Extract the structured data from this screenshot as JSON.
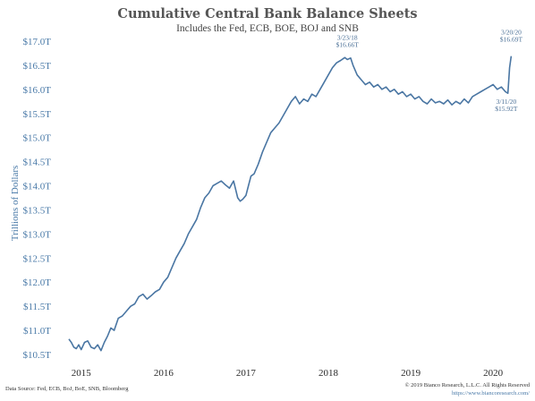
{
  "chart_data": {
    "type": "line",
    "title": "Cumulative Central Bank Balance Sheets",
    "subtitle": "Includes the Fed, ECB, BOE, BOJ and SNB",
    "ylabel": "Trillions of Dollars",
    "xlabel": "",
    "ylim": [
      10.5,
      17.0
    ],
    "xlim": [
      2014.72,
      2020.4
    ],
    "y_ticks": [
      10.5,
      11.0,
      11.5,
      12.0,
      12.5,
      13.0,
      13.5,
      14.0,
      14.5,
      15.0,
      15.5,
      16.0,
      16.5,
      17.0
    ],
    "y_tick_labels": [
      "$10.5T",
      "$11.0T",
      "$11.5T",
      "$12.0T",
      "$12.5T",
      "$13.0T",
      "$13.5T",
      "$14.0T",
      "$14.5T",
      "$15.0T",
      "$15.5T",
      "$16.0T",
      "$16.5T",
      "$17.0T"
    ],
    "x_ticks": [
      2015,
      2016,
      2017,
      2018,
      2019,
      2020
    ],
    "x_tick_labels": [
      "2015",
      "2016",
      "2017",
      "2018",
      "2019",
      "2020"
    ],
    "grid": false,
    "legend": "none",
    "line_color": "#4a76a3",
    "series": [
      {
        "x": [
          2014.85,
          2014.88,
          2014.91,
          2014.94,
          2014.97,
          2015.0,
          2015.04,
          2015.08,
          2015.12,
          2015.16,
          2015.2,
          2015.24,
          2015.28,
          2015.32,
          2015.36,
          2015.4,
          2015.45,
          2015.5,
          2015.55,
          2015.6,
          2015.65,
          2015.7,
          2015.75,
          2015.8,
          2015.85,
          2015.9,
          2015.95,
          2016.0,
          2016.05,
          2016.1,
          2016.15,
          2016.2,
          2016.25,
          2016.3,
          2016.35,
          2016.4,
          2016.45,
          2016.5,
          2016.55,
          2016.6,
          2016.65,
          2016.7,
          2016.75,
          2016.8,
          2016.85,
          2016.9,
          2016.93,
          2016.96,
          2017.0,
          2017.03,
          2017.06,
          2017.1,
          2017.15,
          2017.2,
          2017.25,
          2017.3,
          2017.35,
          2017.4,
          2017.45,
          2017.5,
          2017.55,
          2017.6,
          2017.65,
          2017.7,
          2017.75,
          2017.8,
          2017.85,
          2017.9,
          2017.95,
          2018.0,
          2018.05,
          2018.1,
          2018.15,
          2018.2,
          2018.23,
          2018.27,
          2018.3,
          2018.35,
          2018.4,
          2018.45,
          2018.5,
          2018.55,
          2018.6,
          2018.65,
          2018.7,
          2018.75,
          2018.8,
          2018.85,
          2018.9,
          2018.95,
          2019.0,
          2019.05,
          2019.1,
          2019.15,
          2019.2,
          2019.25,
          2019.3,
          2019.35,
          2019.4,
          2019.45,
          2019.5,
          2019.55,
          2019.6,
          2019.65,
          2019.7,
          2019.75,
          2019.8,
          2019.85,
          2019.9,
          2019.95,
          2020.0,
          2020.05,
          2020.1,
          2020.15,
          2020.18,
          2020.2,
          2020.22
        ],
        "y": [
          10.82,
          10.75,
          10.65,
          10.62,
          10.7,
          10.6,
          10.75,
          10.78,
          10.65,
          10.62,
          10.7,
          10.58,
          10.75,
          10.88,
          11.05,
          11.0,
          11.25,
          11.3,
          11.4,
          11.5,
          11.55,
          11.7,
          11.75,
          11.65,
          11.72,
          11.8,
          11.85,
          12.0,
          12.1,
          12.3,
          12.5,
          12.65,
          12.8,
          13.0,
          13.15,
          13.3,
          13.55,
          13.75,
          13.85,
          14.0,
          14.05,
          14.1,
          14.02,
          13.95,
          14.1,
          13.75,
          13.68,
          13.72,
          13.8,
          14.0,
          14.2,
          14.25,
          14.45,
          14.7,
          14.9,
          15.1,
          15.2,
          15.3,
          15.45,
          15.6,
          15.75,
          15.85,
          15.7,
          15.8,
          15.75,
          15.9,
          15.85,
          16.0,
          16.15,
          16.3,
          16.45,
          16.55,
          16.6,
          16.66,
          16.62,
          16.65,
          16.5,
          16.3,
          16.2,
          16.1,
          16.15,
          16.05,
          16.1,
          16.0,
          16.05,
          15.95,
          16.0,
          15.9,
          15.95,
          15.85,
          15.9,
          15.8,
          15.85,
          15.75,
          15.7,
          15.8,
          15.72,
          15.75,
          15.7,
          15.78,
          15.68,
          15.75,
          15.7,
          15.8,
          15.72,
          15.85,
          15.9,
          15.95,
          16.0,
          16.05,
          16.1,
          16.0,
          16.05,
          15.95,
          15.92,
          16.45,
          16.69
        ],
        "name": ""
      }
    ],
    "annotations": [
      {
        "x": 2018.23,
        "y": 16.66,
        "lines": [
          "3/23/18",
          "$16.66T"
        ]
      },
      {
        "x": 2020.16,
        "y": 15.92,
        "lines": [
          "3/11/20",
          "$15.92T"
        ]
      },
      {
        "x": 2020.22,
        "y": 16.69,
        "lines": [
          "3/20/20",
          "$16.69T"
        ]
      }
    ]
  },
  "footer": {
    "source": "Data Source: Fed, ECB, BoJ, BoE, SNB, Bloomberg",
    "copyright": "© 2019 Bianco Research, L.L.C. All Rights Reserved",
    "url": "https://www.biancoresearch.com/"
  }
}
